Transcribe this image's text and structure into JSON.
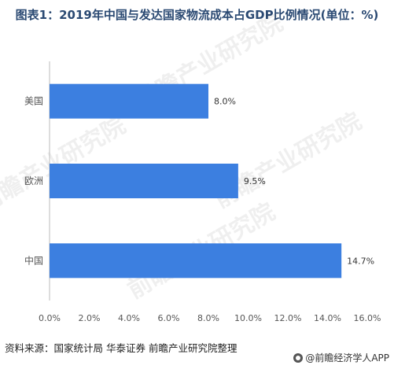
{
  "title": "图表1：2019年中国与发达国家物流成本占GDP比例情况(单位：%)",
  "source": "资料来源：国家统计局 华泰证券 前瞻产业研究院整理",
  "brand": "@前瞻经济学人APP",
  "watermark": "前瞻产业研究院",
  "colors": {
    "bar": "#3c7fe0"
  },
  "chart_data": {
    "type": "bar",
    "orientation": "horizontal",
    "categories": [
      "美国",
      "欧洲",
      "中国"
    ],
    "values": [
      8.0,
      9.5,
      14.7
    ],
    "value_labels": [
      "8.0%",
      "9.5%",
      "14.7%"
    ],
    "xticks": [
      "0.0%",
      "2.0%",
      "4.0%",
      "6.0%",
      "8.0%",
      "10.0%",
      "12.0%",
      "14.0%",
      "16.0%"
    ],
    "xlim": [
      0,
      16
    ],
    "grid": false
  }
}
